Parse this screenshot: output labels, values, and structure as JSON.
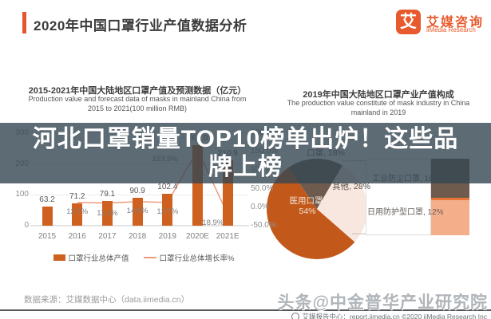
{
  "header": {
    "title": "2020年中国口罩行业产值数据分析",
    "logo": {
      "mark": "艾",
      "name_zh": "艾媒咨询",
      "name_en": "iiMedia Research"
    }
  },
  "banner": {
    "headline": "河北口罩销量TOP10榜单出炉！这些品牌上榜",
    "lines": [
      "河北口罩销量TOP10榜单出炉！这些品",
      "牌上榜"
    ]
  },
  "chart_data": [
    {
      "type": "bar",
      "title_zh": "2015-2021年中国大陆地区口罩产值及预测数据（亿元）",
      "title_en": "Production value and forecast data of masks in mainland China from 2015 to 2021(100 million RMB)",
      "categories": [
        "2015",
        "2016",
        "2017",
        "2018",
        "2019",
        "2020E",
        "2021E"
      ],
      "series": [
        {
          "name": "口罩行业总体产值",
          "type": "bar",
          "color": "#CE6120",
          "values": [
            63.2,
            71.2,
            79.1,
            90.9,
            102.4,
            260.0,
            210.9
          ]
        },
        {
          "name": "口罩行业总体增长率%",
          "type": "line",
          "color": "#EC9C7D",
          "values": [
            null,
            12.7,
            11.1,
            14.9,
            12.7,
            153.9,
            -18.9
          ]
        }
      ],
      "y_left": {
        "ticks": [
          "0",
          "100",
          "200",
          "300"
        ],
        "min": 0,
        "max": 300
      },
      "y_right": {
        "ticks": [
          "-50.0%",
          "0.0%",
          "50.0%",
          "100.0%",
          "150.0%",
          "200.0%"
        ],
        "min": -50,
        "max": 200
      },
      "legend_position": "bottom",
      "grid": true
    },
    {
      "type": "pie",
      "title_zh": "2019年中国大陆地区口罩产业产值构成",
      "title_en": "The production value constitute of mask industry in China mainland in 2019",
      "slices": [
        {
          "label": "医用口罩",
          "value": 54,
          "color": "#C2591B"
        },
        {
          "label": "口罩",
          "value": 18,
          "color": "#6E5B4E"
        },
        {
          "label": "其他",
          "value": 28,
          "color": "#F8E7DF"
        }
      ],
      "breakdown": [
        {
          "label": "工业防尘口罩",
          "value": 16,
          "color": "#6E5B4E"
        },
        {
          "label": "日用防护型口罩",
          "value": 12,
          "color": "#F5AE8A"
        }
      ],
      "breakdown_divider_color": "#E8763B"
    }
  ],
  "footer": {
    "source": "数据来源：艾媒数据中心（data.iimedia.cn）",
    "watermark": "头条@中金普华产业研究院",
    "report_line": "艾媒报告中心：report.iimedia.cn ©2020 iiMedia Research Inc"
  }
}
